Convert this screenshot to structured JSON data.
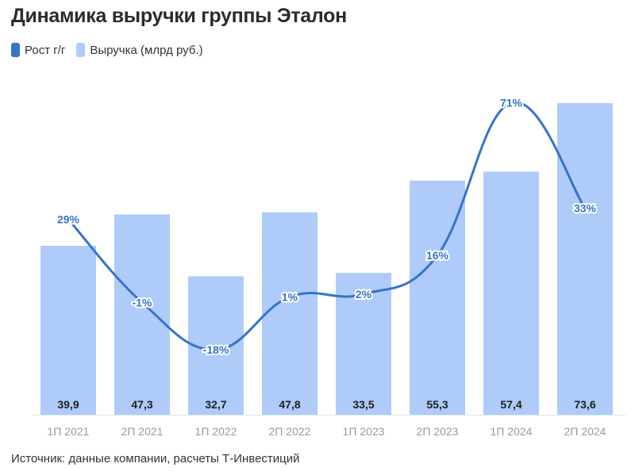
{
  "title": "Динамика выручки группы Эталон",
  "legend": {
    "line_label": "Рост г/г",
    "bar_label": "Выручка (млрд руб.)"
  },
  "source": "Источник: данные компании, расчеты Т-Инвестиций",
  "colors": {
    "bar": "#aecbfa",
    "line": "#3674c8",
    "axis_text": "#9a9a9a"
  },
  "chart_data": {
    "type": "bar",
    "categories": [
      "1П 2021",
      "2П 2021",
      "1П 2022",
      "2П 2022",
      "1П 2023",
      "2П 2023",
      "1П 2024",
      "2П 2024"
    ],
    "series": [
      {
        "name": "Выручка (млрд руб.)",
        "type": "bar",
        "values": [
          39.9,
          47.3,
          32.7,
          47.8,
          33.5,
          55.3,
          57.4,
          73.6
        ],
        "labels": [
          "39,9",
          "47,3",
          "32,7",
          "47,8",
          "33,5",
          "55,3",
          "57,4",
          "73,6"
        ]
      },
      {
        "name": "Рост г/г",
        "type": "line",
        "values": [
          29,
          -1,
          -18,
          1,
          2,
          16,
          71,
          33
        ],
        "labels": [
          "29%",
          "-1%",
          "-18%",
          "1%",
          "2%",
          "16%",
          "71%",
          "33%"
        ]
      }
    ],
    "grid": false,
    "legend_position": "top-left"
  }
}
